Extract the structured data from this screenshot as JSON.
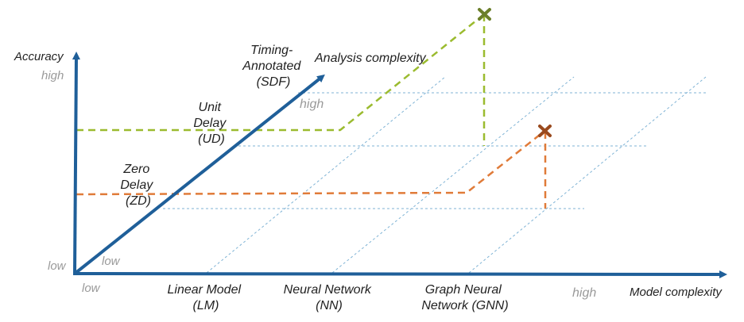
{
  "axes": {
    "y_label": "Accuracy",
    "x_label": "Model complexity",
    "diag_label": "Analysis complexity",
    "y_high": "high",
    "y_low": "low",
    "x_high": "high",
    "x_low": "low",
    "diag_high": "high",
    "diag_low": "low"
  },
  "delay_levels": [
    {
      "lines": [
        "Zero",
        "Delay",
        "(ZD)"
      ]
    },
    {
      "lines": [
        "Unit",
        "Delay",
        "(UD)"
      ]
    },
    {
      "lines": [
        "Timing-",
        "Annotated",
        "(SDF)"
      ]
    }
  ],
  "model_levels": [
    {
      "lines": [
        "Linear Model",
        "(LM)"
      ]
    },
    {
      "lines": [
        "Neural Network",
        "(NN)"
      ]
    },
    {
      "lines": [
        "Graph Neural",
        "Network (GNN)"
      ]
    }
  ],
  "colors": {
    "axis": "#1f5f99",
    "green": "#9bbb2f",
    "orange": "#e07b39",
    "grid": "#7fb3d5",
    "green_marker": "#6b7f2a",
    "orange_marker": "#9a4a1e"
  },
  "markers": [
    "cross-marker-green",
    "cross-marker-orange"
  ]
}
